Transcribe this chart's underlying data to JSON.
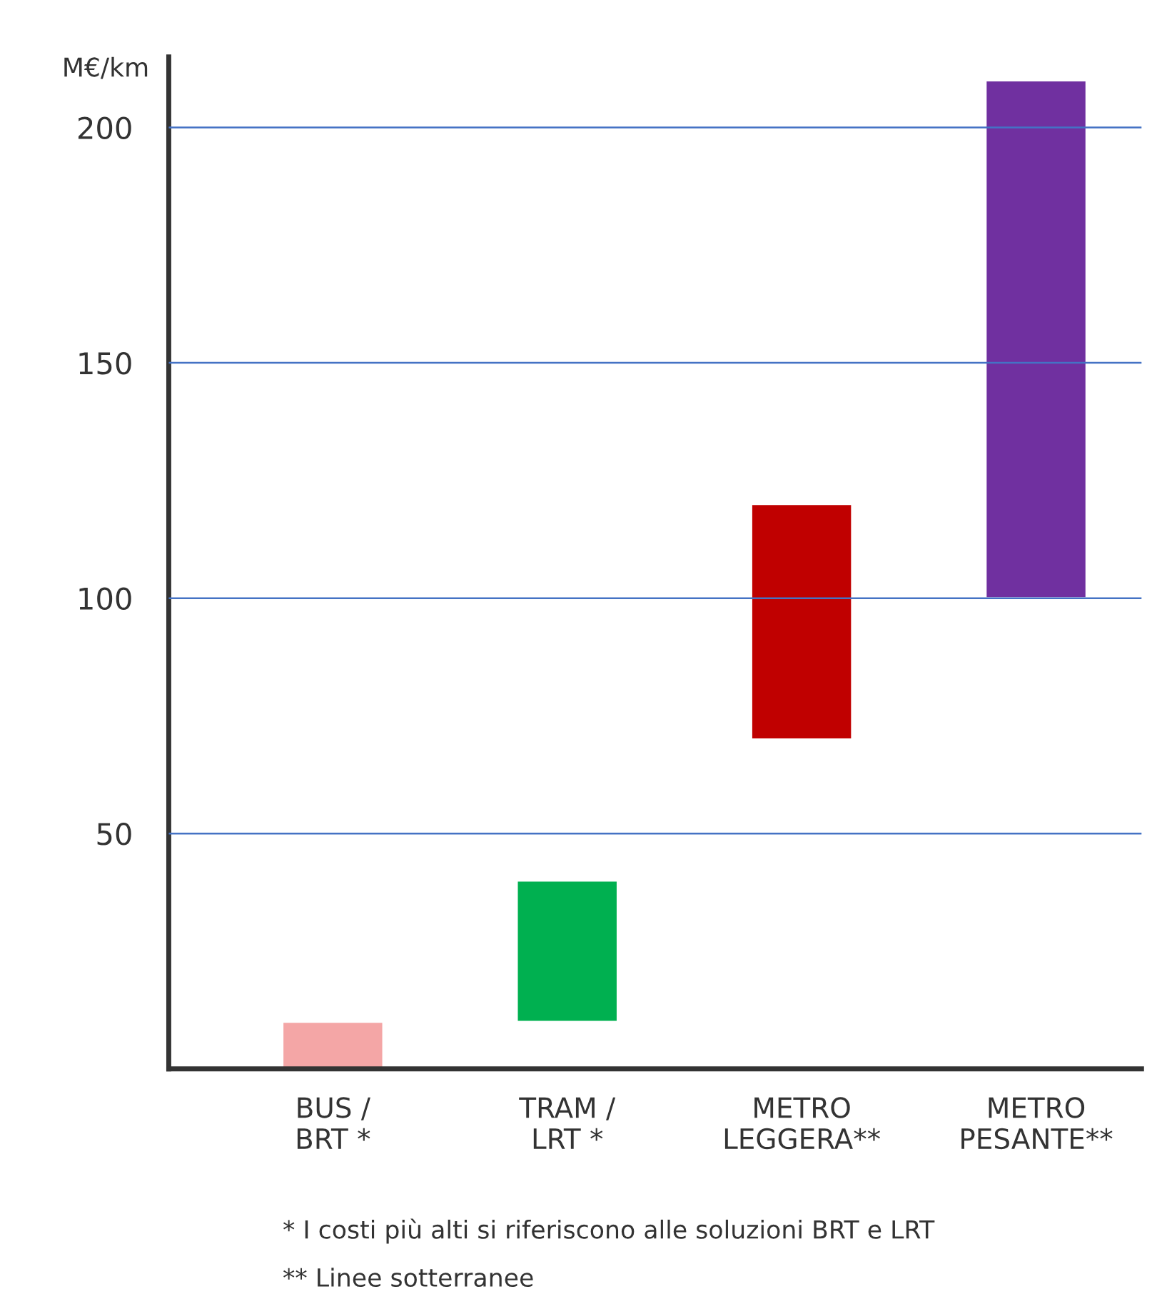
{
  "chart_data": {
    "type": "bar",
    "ylabel": "M€/km",
    "categories": [
      "BUS /\nBRT *",
      "TRAM /\nLRT *",
      "METRO\nLEGGERA**",
      "METRO\nPESANTE**"
    ],
    "base": [
      0,
      10,
      70,
      100
    ],
    "values": [
      10,
      30,
      50,
      110
    ],
    "colors": [
      "#f4a6a6",
      "#00b050",
      "#c00000",
      "#7030a0"
    ],
    "ylim": [
      0,
      215
    ],
    "yticks": [
      50,
      100,
      150,
      200
    ],
    "grid": "y",
    "annotations": [
      "* I costi più alti si riferiscono alle soluzioni BRT e LRT",
      "** Linee sotterranee"
    ]
  }
}
